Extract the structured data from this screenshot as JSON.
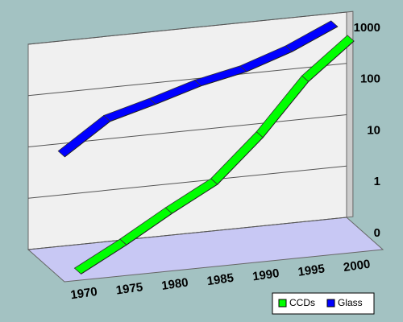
{
  "chart_data": {
    "type": "line3d",
    "categories": [
      "1970",
      "1975",
      "1980",
      "1985",
      "1990",
      "1995",
      "2000"
    ],
    "series": [
      {
        "name": "CCDs",
        "color": "#00ff00",
        "values": [
          0.1,
          0.3,
          1,
          3,
          20,
          200,
          1000
        ]
      },
      {
        "name": "Glass",
        "color": "#0000ff",
        "values": [
          10,
          40,
          70,
          130,
          200,
          400,
          1000
        ]
      }
    ],
    "log_scale": true,
    "ylim": [
      0.1,
      1000
    ],
    "yticks": [
      {
        "value": 0.1,
        "label": "0"
      },
      1,
      10,
      100,
      1000
    ],
    "grid": true,
    "legend": "bottom-right"
  }
}
